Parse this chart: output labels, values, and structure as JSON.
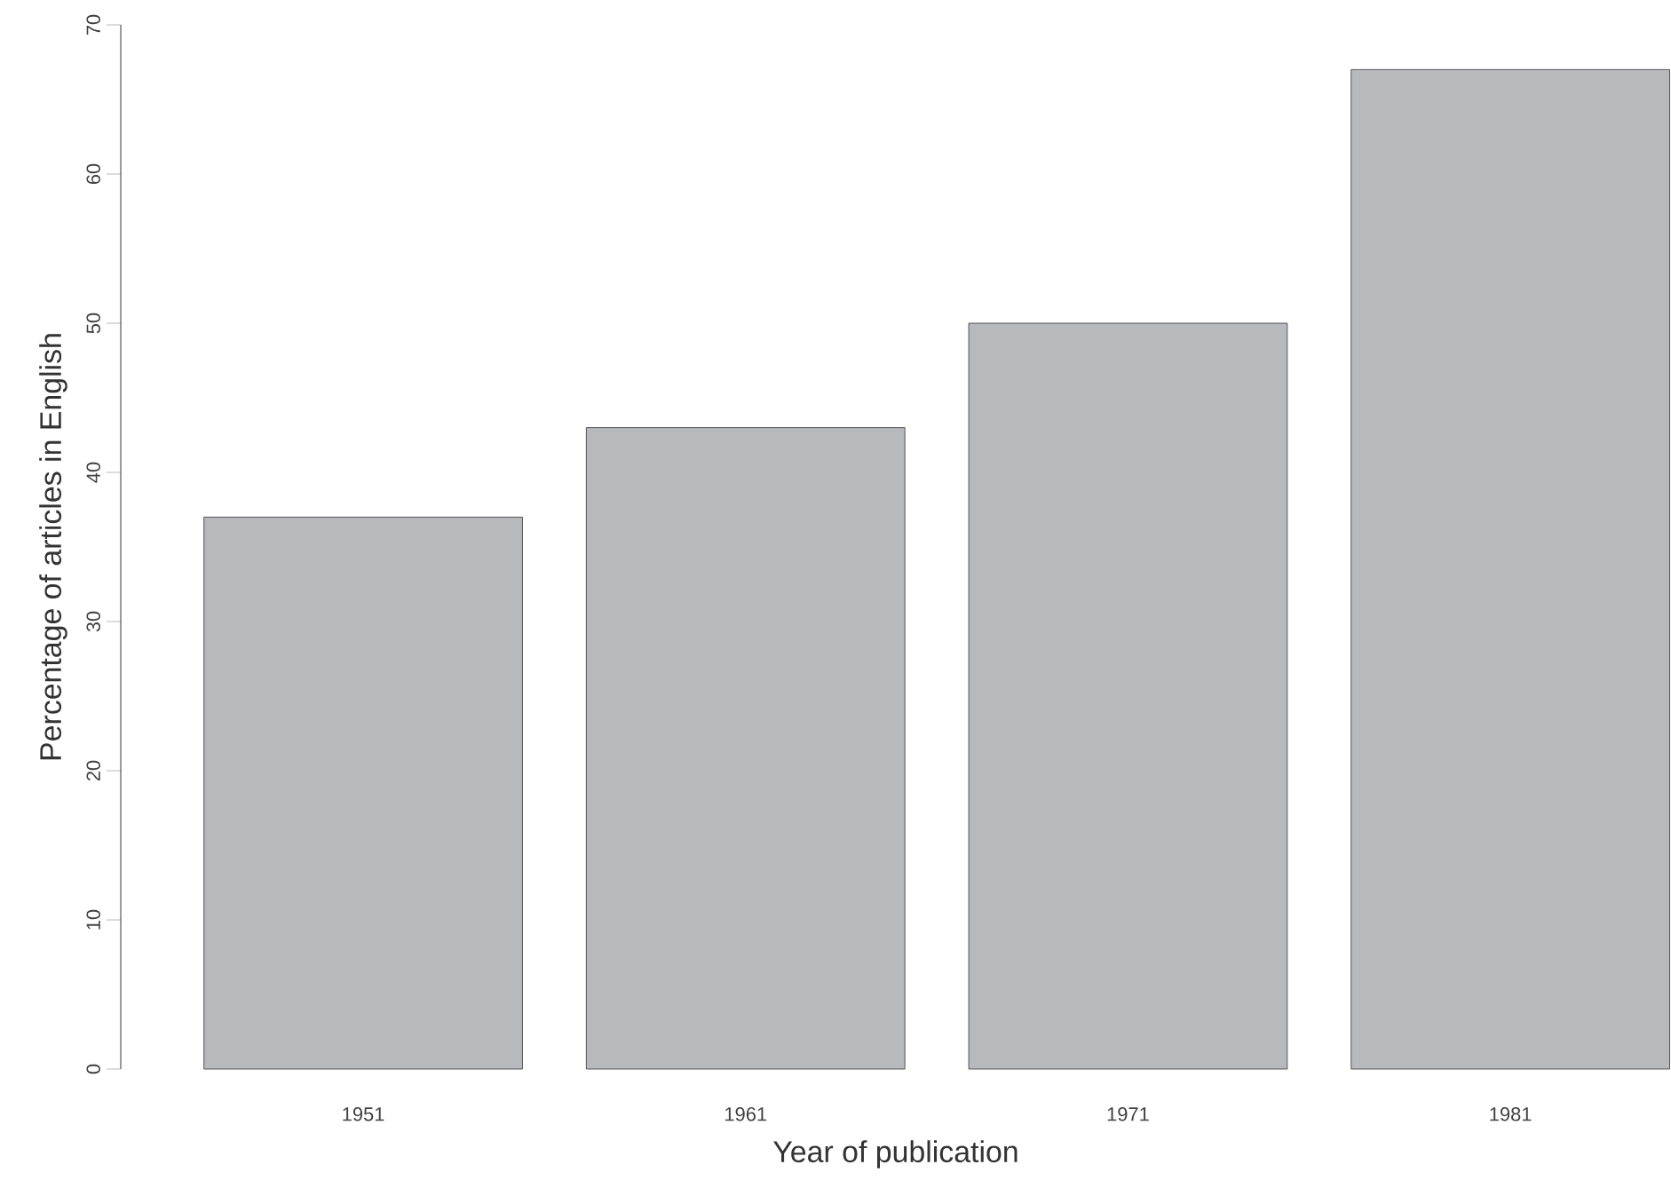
{
  "chart_data": {
    "type": "bar",
    "xlabel": "Year of publication",
    "ylabel": "Percentage of articles in English",
    "categories": [
      "1951",
      "1961",
      "1971",
      "1981"
    ],
    "values": [
      37,
      43,
      50,
      67
    ],
    "color": "#b8b9bd",
    "ylim": [
      0,
      70
    ],
    "yticks": [
      0,
      10,
      20,
      30,
      40,
      50,
      60,
      70
    ]
  }
}
